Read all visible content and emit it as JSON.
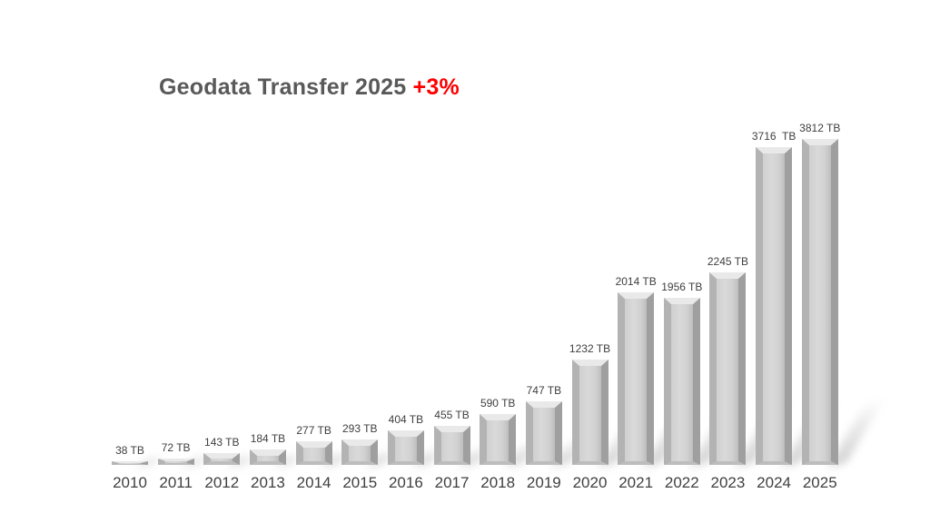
{
  "title": {
    "main": "Geodata Transfer 2025 ",
    "highlight": "+3%"
  },
  "colors": {
    "title_text": "#595959",
    "highlight_text": "#fe0000",
    "value_label_text": "#3e3e3e",
    "year_label_text": "#404040",
    "bar_face": "#d0d0d0",
    "bar_face_light": "#d9d9d9",
    "bar_bevel_top": "#e9e9e9",
    "bar_bevel_left": "#b3b3b3",
    "bar_bevel_right": "#9f9f9f",
    "bar_bevel_bottom": "#bdbdbd",
    "shadow": "#969696",
    "background": "#ffffff"
  },
  "chart_data": {
    "type": "bar",
    "title": "Geodata Transfer 2025 +3%",
    "xlabel": "",
    "ylabel": "",
    "unit": "TB",
    "categories": [
      "2010",
      "2011",
      "2012",
      "2013",
      "2014",
      "2015",
      "2016",
      "2017",
      "2018",
      "2019",
      "2020",
      "2021",
      "2022",
      "2023",
      "2024",
      "2025"
    ],
    "values": [
      38,
      72,
      143,
      184,
      277,
      293,
      404,
      455,
      590,
      747,
      1232,
      2014,
      1956,
      2245,
      3716,
      3812
    ],
    "value_labels": [
      "38 TB",
      "72 TB",
      "143 TB",
      "184 TB",
      "277 TB",
      "293 TB",
      "404 TB",
      "455 TB",
      "590 TB",
      "747 TB",
      "1232 TB",
      "2014 TB",
      "1956 TB",
      "2245 TB",
      "3716  TB",
      "3812 TB"
    ],
    "ylim": [
      0,
      4000
    ],
    "grid": false,
    "legend": false,
    "bar_style": "3d-beveled-gray",
    "growth_note": "+3%"
  }
}
